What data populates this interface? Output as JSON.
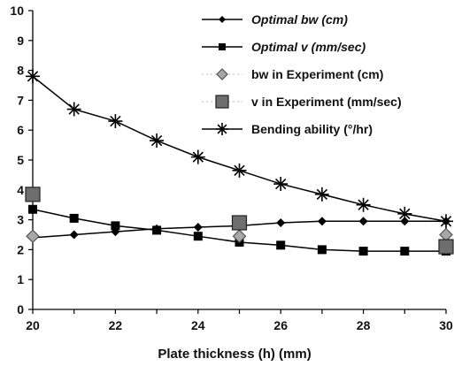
{
  "chart_data": {
    "type": "line",
    "title": "",
    "xlabel": "Plate thickness (h) (mm)",
    "ylabel": "",
    "xlim": [
      20,
      30
    ],
    "ylim": [
      0,
      10
    ],
    "xticks": [
      20,
      22,
      24,
      26,
      28,
      30
    ],
    "yticks": [
      0,
      1,
      2,
      3,
      4,
      5,
      6,
      7,
      8,
      9,
      10
    ],
    "grid": false,
    "legend_position": "top-right",
    "series": [
      {
        "name": "Optimal bw (cm)",
        "marker": "diamond",
        "line": true,
        "color": "#000000",
        "x": [
          20,
          21,
          22,
          23,
          24,
          25,
          26,
          27,
          28,
          29,
          30
        ],
        "y": [
          2.4,
          2.5,
          2.6,
          2.7,
          2.75,
          2.8,
          2.9,
          2.95,
          2.95,
          2.95,
          2.95
        ]
      },
      {
        "name": "Optimal v (mm/sec)",
        "marker": "square",
        "line": true,
        "color": "#000000",
        "x": [
          20,
          21,
          22,
          23,
          24,
          25,
          26,
          27,
          28,
          29,
          30
        ],
        "y": [
          3.35,
          3.05,
          2.8,
          2.65,
          2.45,
          2.25,
          2.15,
          2.0,
          1.95,
          1.95,
          1.95
        ]
      },
      {
        "name": "bw in Experiment (cm)",
        "marker": "diamond-gray",
        "line": false,
        "color": "#9a9a9a",
        "x": [
          20,
          25,
          30
        ],
        "y": [
          2.45,
          2.45,
          2.5
        ]
      },
      {
        "name": "v in Experiment (mm/sec)",
        "marker": "square-gray",
        "line": false,
        "color": "#6e6e6e",
        "x": [
          20,
          25,
          30
        ],
        "y": [
          3.85,
          2.9,
          2.1
        ]
      },
      {
        "name": "Bending ability (°/hr)",
        "marker": "asterisk",
        "line": true,
        "color": "#000000",
        "x": [
          20,
          21,
          22,
          23,
          24,
          25,
          26,
          27,
          28,
          29,
          30
        ],
        "y": [
          7.8,
          6.7,
          6.3,
          5.65,
          5.1,
          4.65,
          4.2,
          3.85,
          3.5,
          3.2,
          2.95
        ]
      }
    ]
  }
}
